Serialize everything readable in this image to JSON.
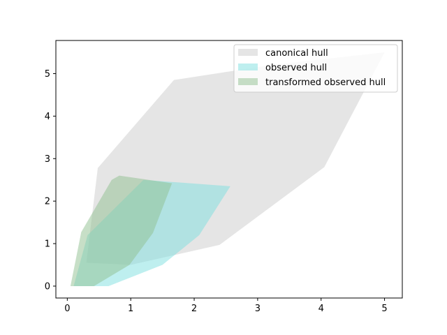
{
  "chart_data": {
    "type": "area",
    "title": "",
    "xlabel": "",
    "ylabel": "",
    "xlim": [
      -0.18,
      5.28
    ],
    "ylim": [
      -0.28,
      5.78
    ],
    "x_ticks": [
      0,
      1,
      2,
      3,
      4,
      5
    ],
    "y_ticks": [
      0,
      1,
      2,
      3,
      4,
      5
    ],
    "grid": false,
    "legend_position": "top-right",
    "series": [
      {
        "name": "canonical hull",
        "color": "#cccccc",
        "opacity": 0.5,
        "points": [
          [
            0.3,
            0.55
          ],
          [
            0.48,
            2.78
          ],
          [
            1.68,
            4.85
          ],
          [
            3.2,
            5.2
          ],
          [
            5.0,
            5.5
          ],
          [
            4.05,
            2.8
          ],
          [
            2.4,
            0.97
          ],
          [
            1.0,
            0.5
          ],
          [
            0.3,
            0.55
          ]
        ]
      },
      {
        "name": "observed hull",
        "color": "#7ddfe0",
        "opacity": 0.5,
        "points": [
          [
            0.1,
            0.0
          ],
          [
            0.65,
            0.0
          ],
          [
            1.5,
            0.5
          ],
          [
            2.08,
            1.2
          ],
          [
            2.57,
            2.35
          ],
          [
            1.2,
            2.5
          ],
          [
            0.32,
            1.2
          ],
          [
            0.1,
            0.0
          ]
        ]
      },
      {
        "name": "transformed observed hull",
        "color": "#8fbf8f",
        "opacity": 0.5,
        "points": [
          [
            0.05,
            0.0
          ],
          [
            0.42,
            0.0
          ],
          [
            0.98,
            0.5
          ],
          [
            1.35,
            1.25
          ],
          [
            1.65,
            2.42
          ],
          [
            0.82,
            2.6
          ],
          [
            0.7,
            2.5
          ],
          [
            0.22,
            1.27
          ],
          [
            0.05,
            0.0
          ]
        ]
      }
    ]
  }
}
